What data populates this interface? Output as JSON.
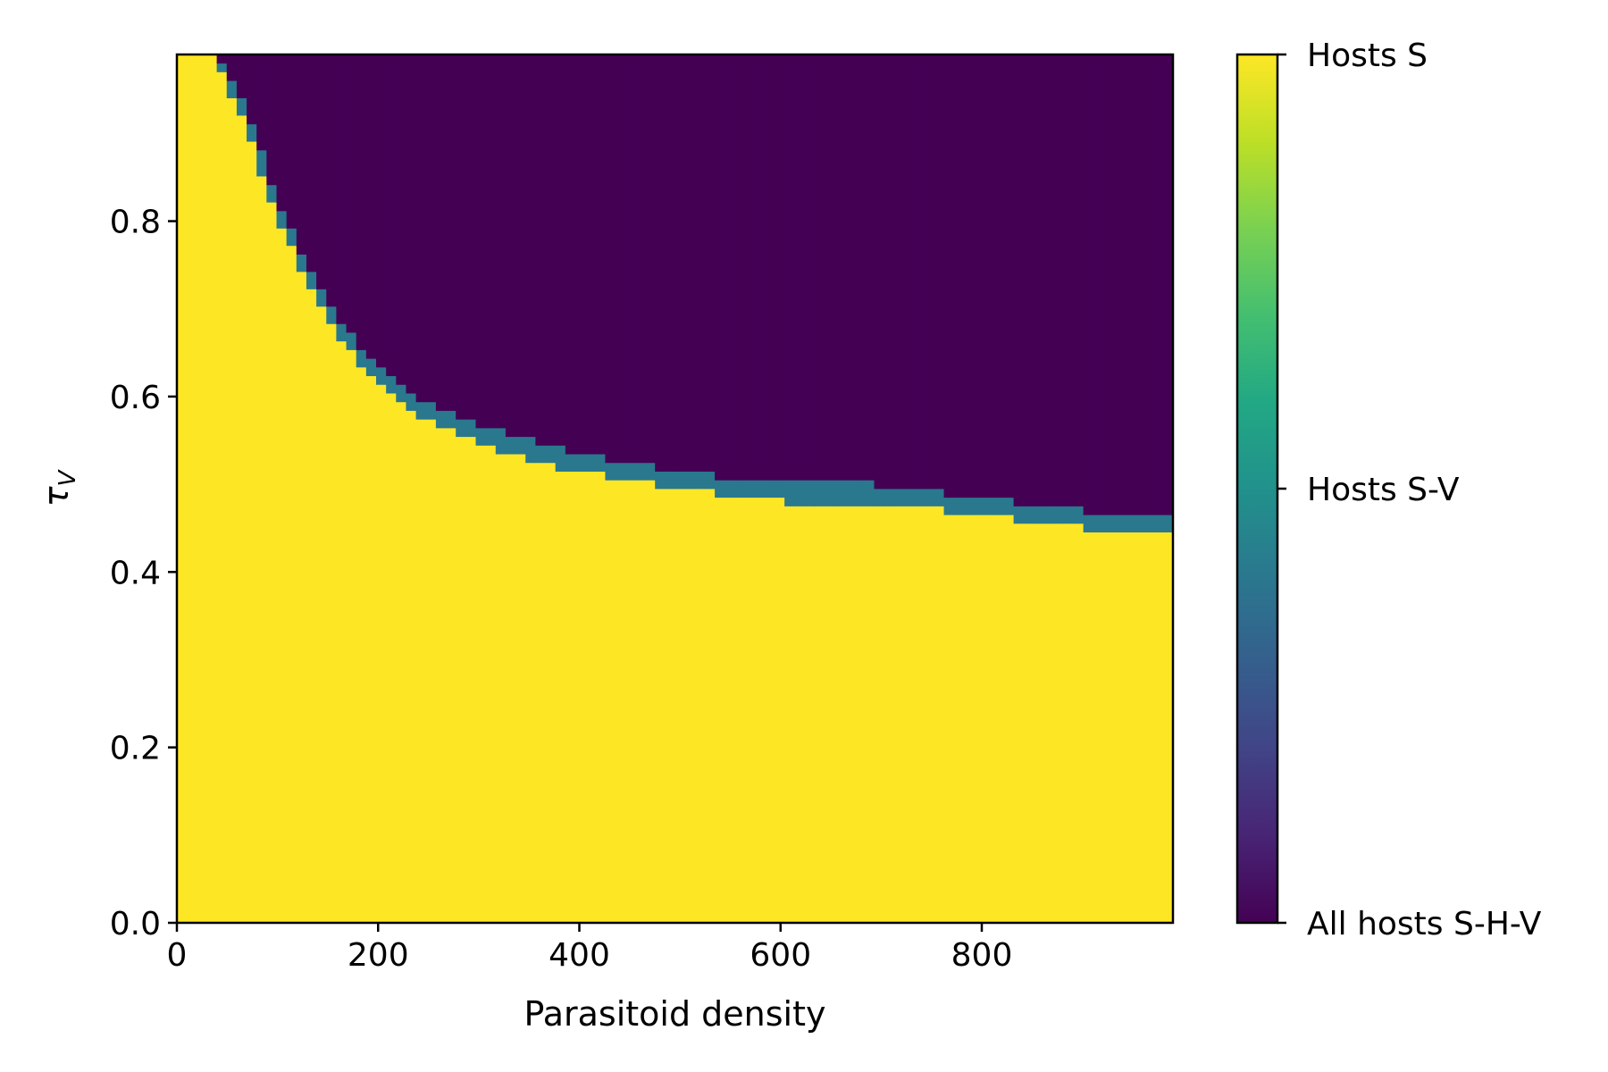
{
  "chart_data": {
    "type": "heatmap",
    "title": "",
    "xlabel": "Parasitoid density",
    "ylabel_symbol": "τ",
    "ylabel_subscript": "V",
    "xlim": [
      0,
      990
    ],
    "ylim": [
      0,
      0.99
    ],
    "xticks": [
      0,
      200,
      400,
      600,
      800
    ],
    "yticks": [
      0.0,
      0.2,
      0.4,
      0.6,
      0.8
    ],
    "xtick_labels": [
      "0",
      "200",
      "400",
      "600",
      "800"
    ],
    "ytick_labels": [
      "0.0",
      "0.2",
      "0.4",
      "0.6",
      "0.8"
    ],
    "grid": false,
    "colormap": "viridis",
    "colorbar": {
      "ticks": [
        {
          "value": 2,
          "label": "Hosts S"
        },
        {
          "value": 1,
          "label": "Hosts S-V"
        },
        {
          "value": 0,
          "label": "All hosts S-H-V"
        }
      ],
      "range": [
        0,
        2
      ]
    },
    "colors": {
      "Hosts S": "#fde725",
      "Hosts S-V": "#2a788e",
      "All hosts S-H-V": "#440154"
    },
    "regions_description_note": "",
    "boundary": {
      "x": [
        40,
        50,
        60,
        70,
        80,
        90,
        100,
        110,
        120,
        130,
        140,
        150,
        160,
        170,
        180,
        200,
        220,
        240,
        260,
        280,
        300,
        320,
        350,
        380,
        420,
        470,
        530,
        600,
        690,
        760,
        830,
        900,
        990
      ],
      "sv_lower": [
        0.99,
        0.95,
        0.93,
        0.9,
        0.87,
        0.83,
        0.8,
        0.78,
        0.75,
        0.73,
        0.71,
        0.69,
        0.67,
        0.66,
        0.64,
        0.62,
        0.6,
        0.58,
        0.57,
        0.56,
        0.55,
        0.54,
        0.53,
        0.52,
        0.51,
        0.5,
        0.49,
        0.48,
        0.48,
        0.47,
        0.46,
        0.45,
        0.45
      ],
      "sv_upper": [
        0.99,
        0.96,
        0.95,
        0.92,
        0.89,
        0.86,
        0.82,
        0.8,
        0.77,
        0.75,
        0.73,
        0.71,
        0.69,
        0.68,
        0.66,
        0.64,
        0.62,
        0.6,
        0.59,
        0.58,
        0.57,
        0.56,
        0.55,
        0.54,
        0.53,
        0.52,
        0.51,
        0.5,
        0.5,
        0.49,
        0.48,
        0.47,
        0.47
      ]
    }
  }
}
